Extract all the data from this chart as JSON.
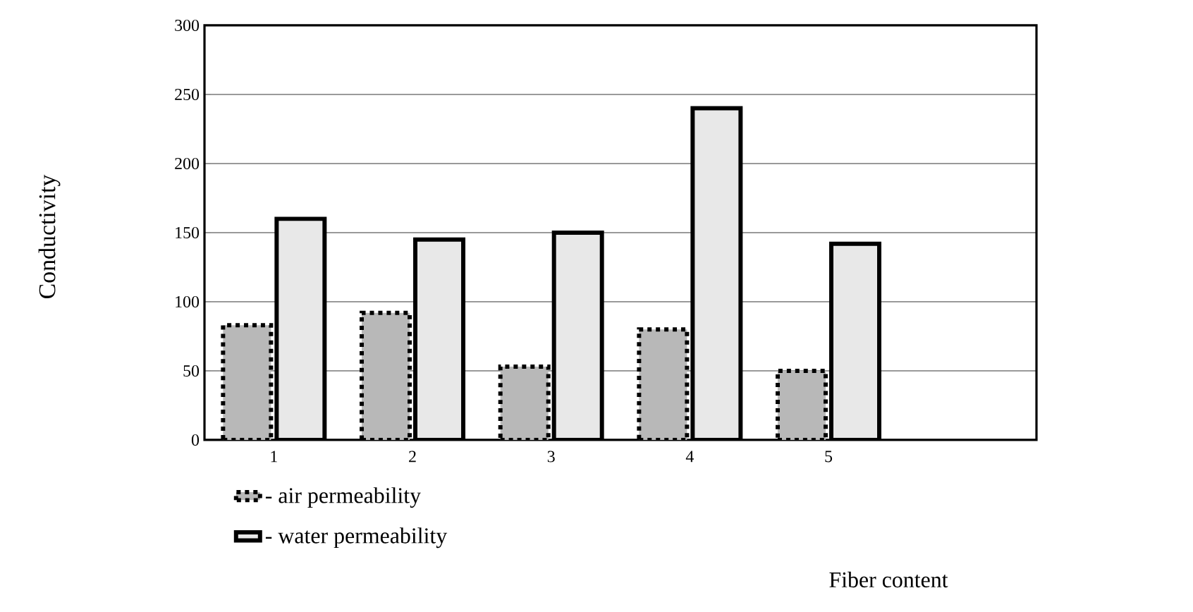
{
  "chart_data": {
    "type": "bar",
    "xlabel": "Fiber content",
    "ylabel": "Conductivity",
    "categories": [
      "1",
      "2",
      "3",
      "4",
      "5",
      null
    ],
    "series": [
      {
        "name": "- air permeability",
        "color": "#b8b8b8",
        "line_style": "dashed",
        "values": [
          83,
          92,
          53,
          80,
          50,
          null
        ]
      },
      {
        "name": "- water permeability",
        "color": "#e8e8e8",
        "line_style": "solid",
        "values": [
          160,
          145,
          150,
          240,
          142,
          null
        ]
      }
    ],
    "ylim": [
      0,
      300
    ],
    "yticks": [
      0,
      50,
      100,
      150,
      200,
      250,
      300
    ],
    "grid": "y",
    "legend": "bottom left"
  }
}
